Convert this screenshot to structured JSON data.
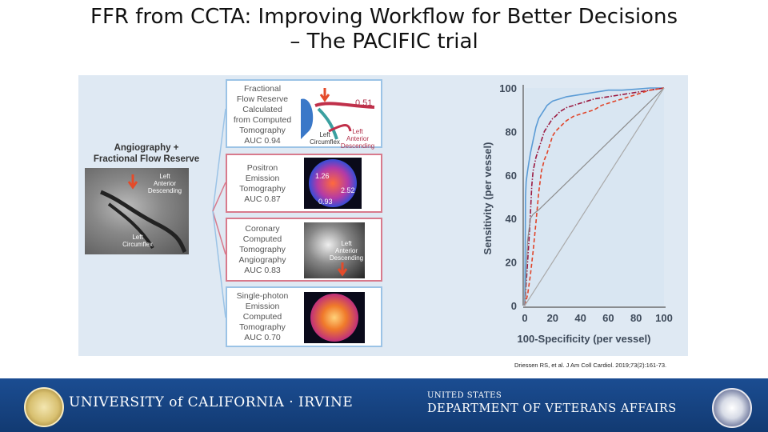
{
  "title": {
    "line1": "FFR from CCTA:  Improving Workflow for Better Decisions",
    "line2": "– The PACIFIC trial"
  },
  "reference": {
    "label_line1": "Angiography +",
    "label_line2": "Fractional Flow Reserve",
    "image_labels": {
      "lad_1": "Left",
      "lad_2": "Anterior",
      "lad_3": "Descending",
      "lcx_1": "Left",
      "lcx_2": "Circumflex"
    }
  },
  "modalities": [
    {
      "lines": [
        "Fractional",
        "Flow Reserve",
        "Calculated",
        "from Computed",
        "Tomography",
        "AUC 0.94"
      ],
      "image_labels": {
        "value": "0.51",
        "lad_1": "Left",
        "lad_2": "Anterior",
        "lad_3": "Descending",
        "lcx_1": "Left",
        "lcx_2": "Circumflex"
      }
    },
    {
      "lines": [
        "Positron",
        "Emission",
        "Tomography",
        "AUC 0.87"
      ],
      "image_labels": {
        "v1": "1.26",
        "v2": "2.52",
        "v3": "0.93"
      }
    },
    {
      "lines": [
        "Coronary",
        "Computed",
        "Tomography",
        "Angiography",
        "AUC 0.83"
      ],
      "image_labels": {
        "lad_1": "Left",
        "lad_2": "Anterior",
        "lad_3": "Descending"
      }
    },
    {
      "lines": [
        "Single-photon",
        "Emission",
        "Computed",
        "Tomography",
        "AUC 0.70"
      ],
      "image_labels": {}
    }
  ],
  "chart_data": {
    "type": "line",
    "xlabel": "100-Specificity (per vessel)",
    "ylabel": "Sensitivity (per vessel)",
    "xlim": [
      0,
      100
    ],
    "ylim": [
      0,
      100
    ],
    "x_ticks": [
      0,
      20,
      40,
      60,
      80,
      100
    ],
    "y_ticks": [
      0,
      20,
      40,
      60,
      80,
      100
    ],
    "series": [
      {
        "style": "solid",
        "color": "#5b9bd5",
        "x": [
          0,
          0.5,
          1,
          2,
          3,
          4,
          5,
          6,
          7,
          8,
          9,
          10,
          12,
          14,
          16,
          18,
          20,
          25,
          30,
          40,
          50,
          60,
          70,
          80,
          90,
          100
        ],
        "y": [
          0,
          50,
          57,
          62,
          66,
          70,
          73,
          76,
          79,
          82,
          84,
          86,
          88,
          90,
          92,
          93,
          94,
          95,
          96,
          97,
          98,
          99,
          99,
          99.5,
          100,
          100
        ]
      },
      {
        "style": "dashdot",
        "color": "#9b1b42",
        "x": [
          0,
          1,
          2,
          3,
          4,
          5,
          6,
          8,
          10,
          12,
          14,
          16,
          18,
          20,
          22,
          25,
          30,
          35,
          40,
          45,
          50,
          60,
          70,
          80,
          90,
          100
        ],
        "y": [
          0,
          10,
          20,
          30,
          42,
          55,
          62,
          68,
          72,
          76,
          80,
          82,
          84,
          86,
          87,
          89,
          91,
          92,
          93,
          94,
          95,
          96,
          97,
          98,
          99,
          100
        ]
      },
      {
        "style": "dashed",
        "color": "#e0452a",
        "x": [
          0,
          2,
          4,
          6,
          8,
          10,
          12,
          14,
          16,
          18,
          20,
          22,
          25,
          30,
          35,
          40,
          45,
          50,
          55,
          60,
          70,
          80,
          90,
          100
        ],
        "y": [
          0,
          5,
          14,
          25,
          38,
          52,
          62,
          67,
          70,
          74,
          78,
          80,
          82,
          85,
          87,
          88,
          89,
          90,
          92,
          93,
          95,
          97,
          99,
          100
        ]
      },
      {
        "style": "solid",
        "color": "#8c8c8c",
        "x": [
          0,
          2,
          4,
          6,
          8,
          10,
          100
        ],
        "y": [
          0,
          30,
          40,
          42,
          43,
          44,
          100
        ]
      },
      {
        "style": "solid",
        "color": "#aaaaaa",
        "x": [
          0,
          100
        ],
        "y": [
          0,
          100
        ]
      }
    ]
  },
  "citation": "Driessen RS, et al. J Am Coll Cardiol. 2019;73(2):161-73.",
  "footer": {
    "uci": "UNIVERSITY of CALIFORNIA · IRVINE",
    "va_line1": "UNITED STATES",
    "va_line2": "DEPARTMENT OF VETERANS AFFAIRS"
  },
  "colors": {
    "footer_bg": "#1b4d92",
    "chart_bg": "#dfe9f3",
    "blue_border": "#9bc3e6",
    "red_border": "#d87a8c"
  }
}
